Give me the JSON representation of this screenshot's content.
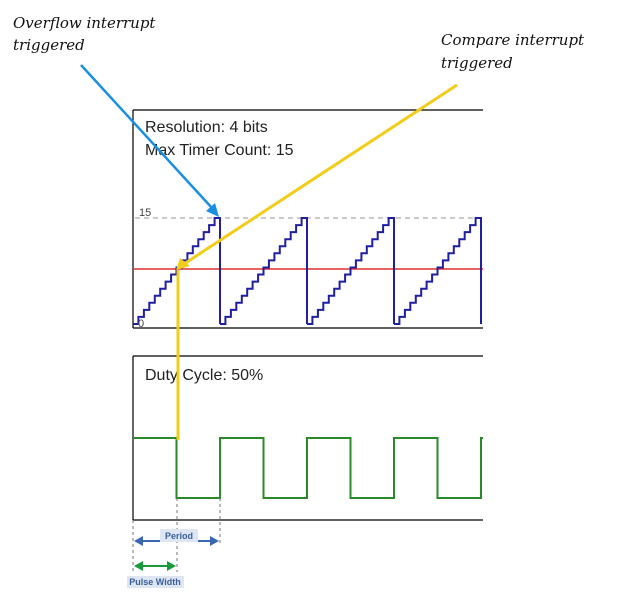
{
  "annotations": {
    "overflow_label_line1": "Overflow interrupt",
    "overflow_label_line2": "triggered",
    "compare_label_line1": "Compare interrupt",
    "compare_label_line2": "triggered"
  },
  "counter_panel": {
    "resolution_text": "Resolution: 4 bits",
    "max_count_text": "Max Timer Count: 15",
    "max_tick_label": "15",
    "zero_tick_label": "0"
  },
  "pwm_panel": {
    "duty_cycle_text": "Duty Cycle: 50%"
  },
  "dimensions": {
    "period_label": "Period",
    "pulse_width_label": "Pulse Width"
  },
  "colors": {
    "counter_staircase": "#1f1fa0",
    "compare_line": "#e03030",
    "max_dashed_line": "#aaaaaa",
    "pwm_signal": "#2a8a2a",
    "overflow_arrow": "#1a8fe0",
    "compare_arrow": "#f2cc1a",
    "period_arrow": "#3a68b0",
    "pulse_width_arrow": "#1a9a3a",
    "badge_background": "#dde6f2"
  },
  "chart_data": {
    "type": "line",
    "bits": 4,
    "max_count": 15,
    "compare_value": 7,
    "duty_cycle_percent": 50,
    "periods_shown": 4
  }
}
